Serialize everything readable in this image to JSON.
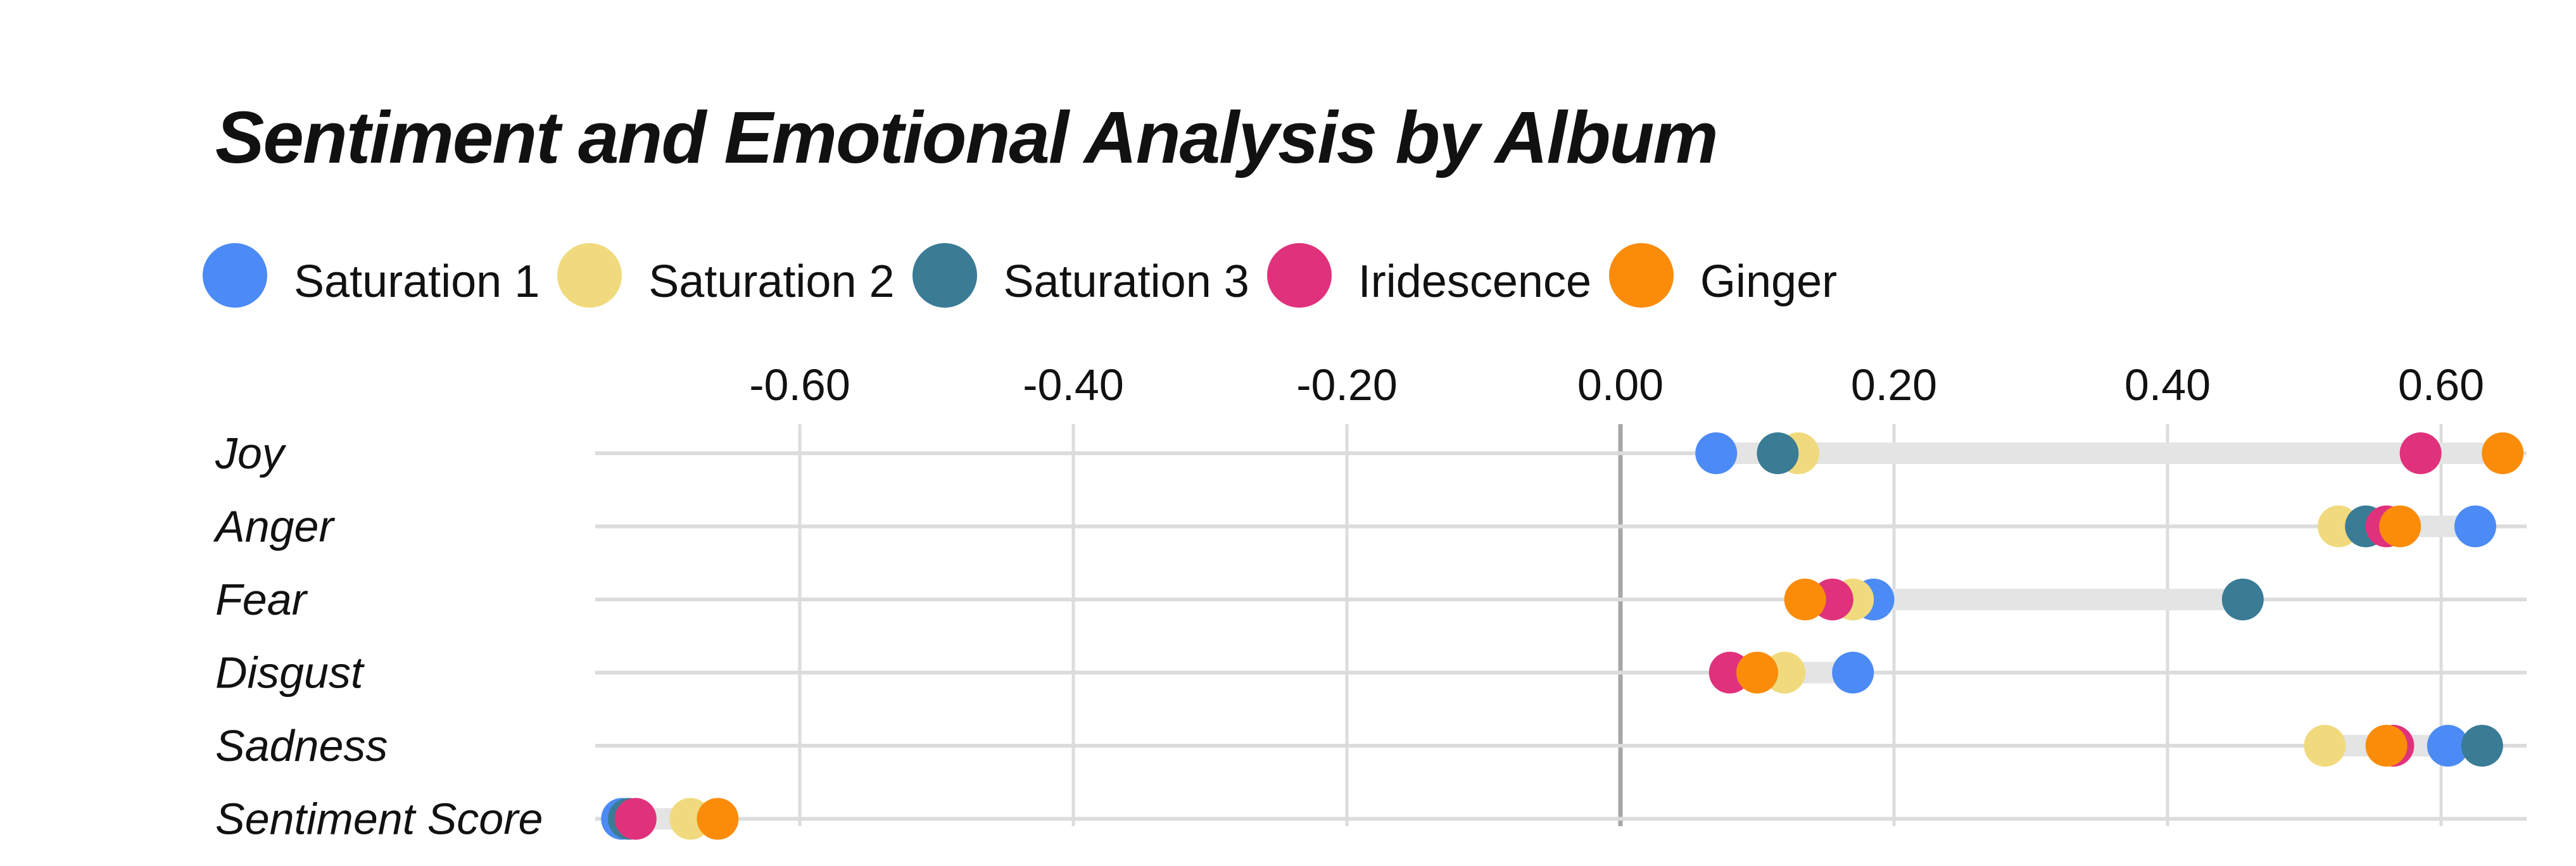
{
  "chart_data": {
    "type": "dot",
    "title": "Sentiment and Emotional Analysis by Album",
    "categories": [
      "Joy",
      "Anger",
      "Fear",
      "Disgust",
      "Sadness",
      "Sentiment Score"
    ],
    "x_ticks": [
      -0.6,
      -0.4,
      -0.2,
      0.0,
      0.2,
      0.4,
      0.6
    ],
    "x_tick_labels": [
      "-0.60",
      "-0.40",
      "-0.20",
      "0.00",
      "0.20",
      "0.40",
      "0.60"
    ],
    "xlim": [
      -0.74,
      0.66
    ],
    "x_axis_position": "top",
    "grid": true,
    "legend_position": "top-left",
    "series": [
      {
        "name": "Saturation 1",
        "color": "#4C8BF5",
        "values": [
          0.07,
          0.625,
          0.185,
          0.17,
          0.605,
          -0.73
        ]
      },
      {
        "name": "Saturation 2",
        "color": "#F0DA7D",
        "values": [
          0.13,
          0.525,
          0.17,
          0.12,
          0.515,
          -0.68
        ]
      },
      {
        "name": "Saturation 3",
        "color": "#3A7B96",
        "values": [
          0.115,
          0.545,
          0.455,
          null,
          0.63,
          -0.725
        ]
      },
      {
        "name": "Iridescence",
        "color": "#E0327C",
        "values": [
          0.585,
          0.56,
          0.155,
          0.08,
          0.565,
          -0.72
        ]
      },
      {
        "name": "Ginger",
        "color": "#FA8C0A",
        "values": [
          0.645,
          0.57,
          0.135,
          0.1,
          0.56,
          -0.66
        ]
      }
    ]
  }
}
